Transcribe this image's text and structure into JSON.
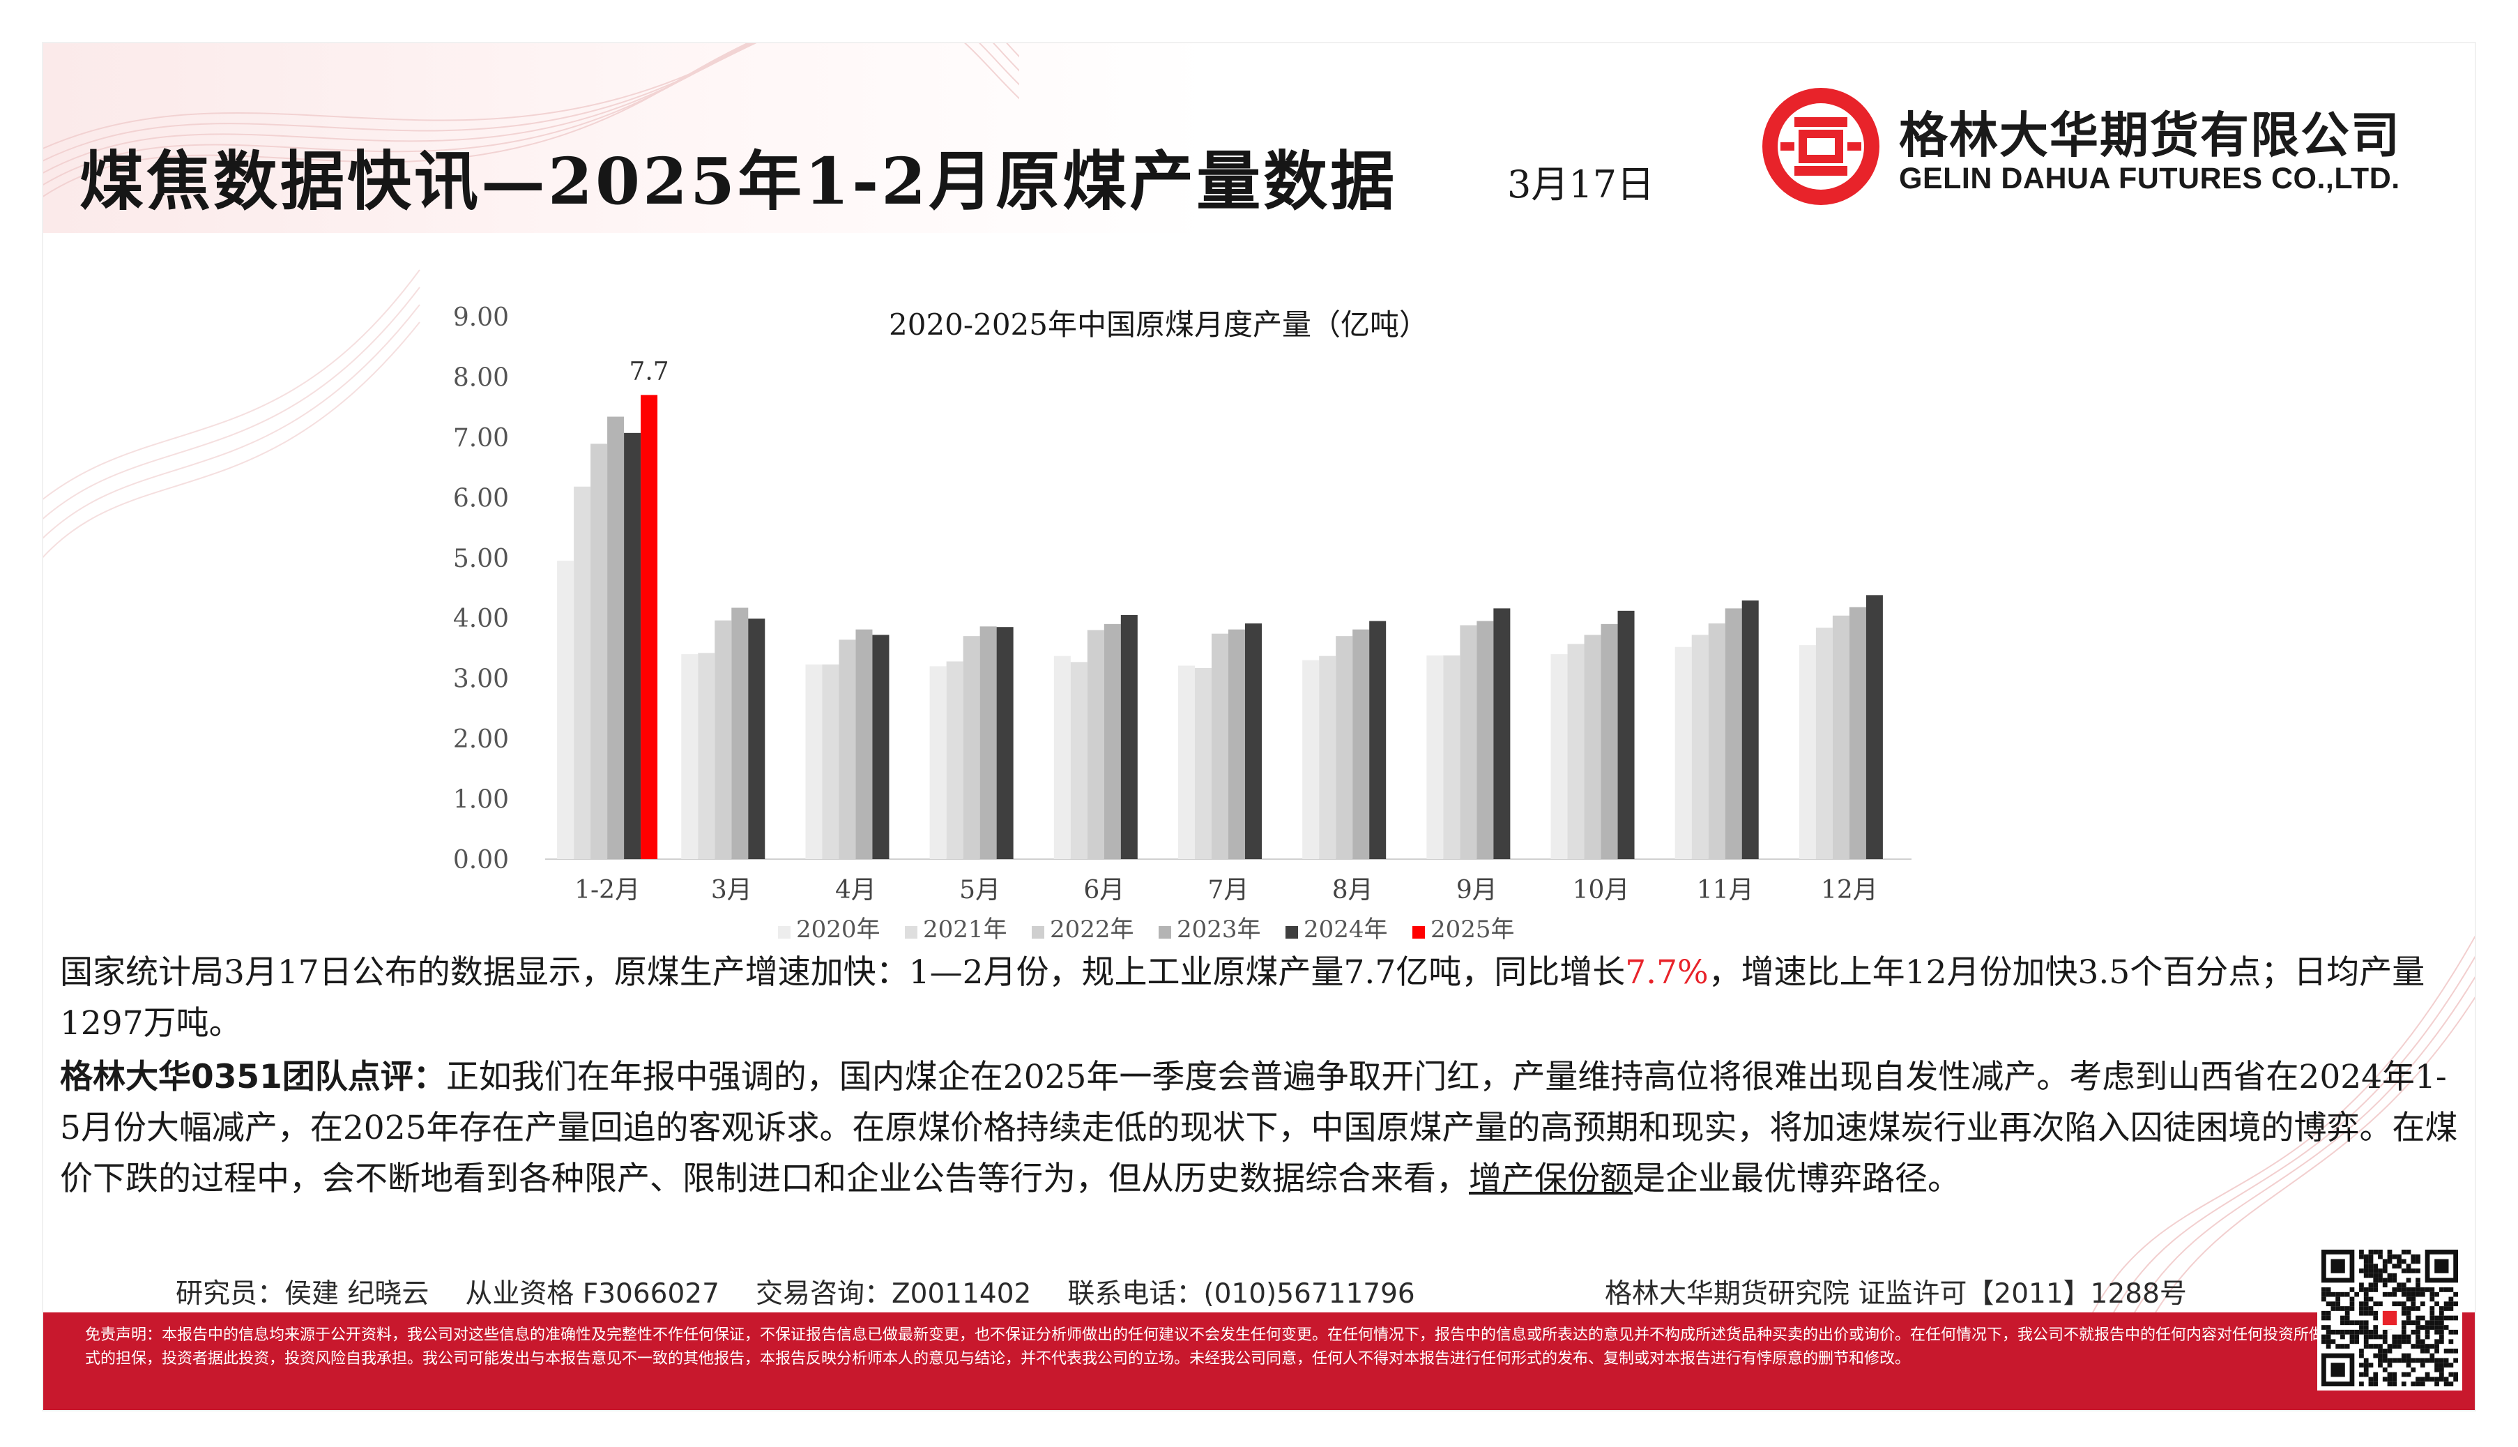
{
  "header": {
    "title": "煤焦数据快讯—2025年1-2月原煤产量数据",
    "date": "3月17日",
    "company_cn": "格林大华期货有限公司",
    "company_en": "GELIN DAHUA FUTURES CO.,LTD."
  },
  "chart_data": {
    "type": "bar",
    "title": "2020-2025年中国原煤月度产量（亿吨）",
    "categories": [
      "1-2月",
      "3月",
      "4月",
      "5月",
      "6月",
      "7月",
      "8月",
      "9月",
      "10月",
      "11月",
      "12月"
    ],
    "ylim": [
      0,
      9
    ],
    "yticks": [
      "0.00",
      "1.00",
      "2.00",
      "3.00",
      "4.00",
      "5.00",
      "6.00",
      "7.00",
      "8.00",
      "9.00"
    ],
    "legend_position": "bottom",
    "series": [
      {
        "name": "2020年",
        "color": "#ededed",
        "values": [
          4.95,
          3.4,
          3.23,
          3.2,
          3.37,
          3.21,
          3.3,
          3.38,
          3.4,
          3.52,
          3.55
        ]
      },
      {
        "name": "2021年",
        "color": "#dedede",
        "values": [
          6.18,
          3.42,
          3.23,
          3.28,
          3.27,
          3.17,
          3.37,
          3.38,
          3.57,
          3.72,
          3.84
        ]
      },
      {
        "name": "2022年",
        "color": "#cfcfcf",
        "values": [
          6.89,
          3.96,
          3.64,
          3.7,
          3.8,
          3.74,
          3.7,
          3.88,
          3.72,
          3.91,
          4.04
        ]
      },
      {
        "name": "2023年",
        "color": "#b4b4b4",
        "values": [
          7.34,
          4.17,
          3.81,
          3.86,
          3.9,
          3.81,
          3.81,
          3.95,
          3.9,
          4.16,
          4.18
        ]
      },
      {
        "name": "2024年",
        "color": "#3f3f3f",
        "values": [
          7.07,
          3.99,
          3.72,
          3.85,
          4.05,
          3.91,
          3.95,
          4.16,
          4.12,
          4.29,
          4.38
        ]
      },
      {
        "name": "2025年",
        "color": "#ff0000",
        "values": [
          7.7,
          null,
          null,
          null,
          null,
          null,
          null,
          null,
          null,
          null,
          null
        ]
      }
    ],
    "annotations": [
      {
        "category": "1-2月",
        "series": "2025年",
        "text": "7.7"
      }
    ]
  },
  "body": {
    "p1_a": "国家统计局3月17日公布的数据显示，原煤生产增速加快：1—2月份，规上工业原煤产量7.7亿吨，同比增长",
    "p1_highlight": "7.7%",
    "p1_b": "，增速比上年12月份加快3.5个百分点；日均产量1297万吨。",
    "p2_lead": "格林大华0351团队点评：",
    "p2_a": "正如我们在年报中强调的，国内煤企在2025年一季度会普遍争取开门红，产量维持高位将很难出现自发性减产。考虑到山西省在2024年1-5月份大幅减产，在2025年存在产量回追的客观诉求。在原煤价格持续走低的现状下，中国原煤产量的高预期和现实，将加速煤炭行业再次陷入囚徒困境的博弈。在煤价下跌的过程中，会不断地看到各种限产、限制进口和企业公告等行为，但从历史数据综合来看，",
    "p2_underline": "增产保份额",
    "p2_b": "是企业最优博弈路径。"
  },
  "footer": {
    "researcher": "研究员：侯建 纪晓云",
    "qualification": "从业资格 F3066027",
    "consult": "交易咨询：Z0011402",
    "phone": "联系电话：(010)56711796",
    "institute": "格林大华期货研究院  证监许可【2011】1288号"
  },
  "disclaimer": "免责声明：本报告中的信息均来源于公开资料，我公司对这些信息的准确性及完整性不作任何保证，不保证报告信息已做最新变更，也不保证分析师做出的任何建议不会发生任何变更。在任何情况下，报告中的信息或所表达的意见并不构成所述货品种买卖的出价或询价。在任何情况下，我公司不就报告中的任何内容对任何投资所做出任何形式的担保，投资者据此投资，投资风险自我承担。我公司可能发出与本报告意见不一致的其他报告，本报告反映分析师本人的意见与结论，并不代表我公司的立场。未经我公司同意，任何人不得对本报告进行任何形式的发布、复制或对本报告进行有悖原意的删节和修改。",
  "colors": {
    "brand_red": "#c8182d",
    "highlight_red": "#e8232a"
  }
}
